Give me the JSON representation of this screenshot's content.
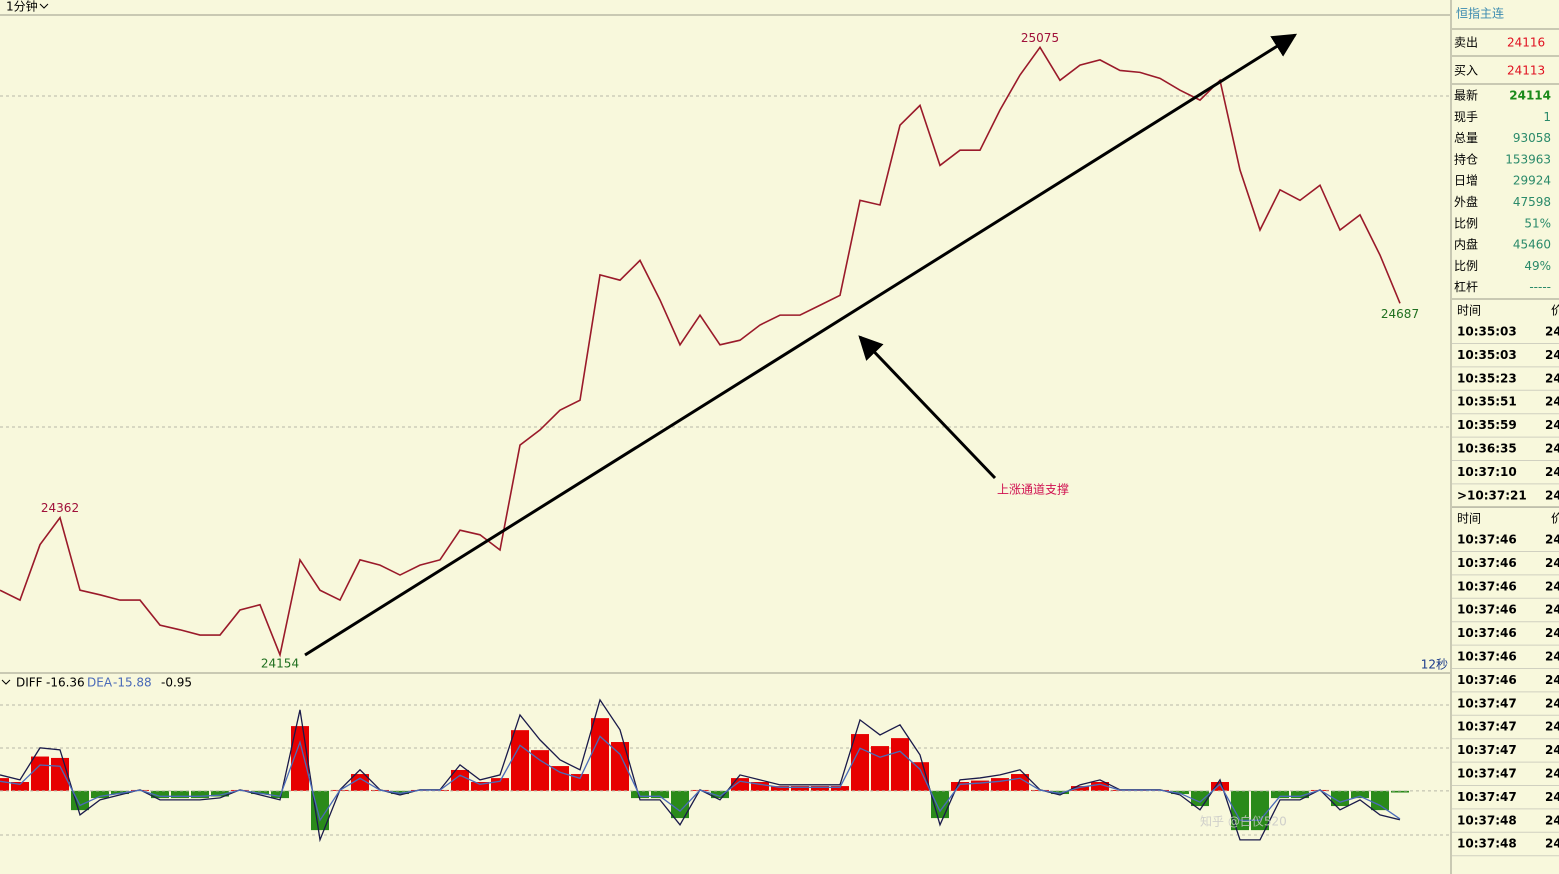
{
  "toolbar": {
    "period": "1分钟"
  },
  "chart": {
    "price": {
      "ylim": [
        24128,
        25124
      ],
      "color": "#9a1a2a",
      "values": [
        24252,
        24237,
        24321,
        24362,
        24252,
        24245,
        24237,
        24237,
        24199,
        24192,
        24184,
        24184,
        24222,
        24230,
        24154,
        24298,
        24252,
        24237,
        24298,
        24290,
        24275,
        24290,
        24298,
        24343,
        24336,
        24313,
        24472,
        24495,
        24525,
        24540,
        24730,
        24722,
        24752,
        24692,
        24624,
        24669,
        24624,
        24631,
        24654,
        24669,
        24669,
        24684,
        24699,
        24843,
        24836,
        24957,
        24987,
        24896,
        24919,
        24919,
        24980,
        25033,
        25075,
        25025,
        25048,
        25056,
        25040,
        25037,
        25028,
        25010,
        24995,
        25025,
        24889,
        24798,
        24859,
        24843,
        24866,
        24798,
        24821,
        24760,
        24687
      ]
    },
    "annotation": "上涨通道支撑",
    "timer": "12秒",
    "macd": {
      "ylim": [
        -47,
        57
      ],
      "diff": {
        "name": "DIFF",
        "color": "#1a1a4a",
        "values": [
          9.0,
          6.2,
          24.3,
          23.2,
          -13.6,
          -5.1,
          -2.3,
          0.6,
          -5.1,
          -5.1,
          -5.1,
          -4.0,
          0.6,
          -2.3,
          -5.1,
          45.8,
          -27.7,
          0.6,
          11.9,
          0.6,
          -2.3,
          0.6,
          0.6,
          14.7,
          6.2,
          9.0,
          42.9,
          28.8,
          17.5,
          11.9,
          51.4,
          34.5,
          -5.1,
          -5.1,
          -19.2,
          0.6,
          -5.1,
          9.0,
          6.2,
          3.4,
          3.4,
          3.4,
          3.4,
          40.1,
          31.6,
          37.3,
          20.3,
          -19.2,
          6.2,
          7.3,
          9.0,
          11.9,
          0.6,
          -2.3,
          3.4,
          6.2,
          0.6,
          0.6,
          0.6,
          -2.3,
          -10.7,
          6.2,
          -27.7,
          -27.7,
          -5.1,
          -5.1,
          0.6,
          -10.7,
          -5.1,
          -13.6,
          -16.36
        ]
      },
      "dea": {
        "name": "DEA",
        "color": "#4a6ab8",
        "values": [
          5.4,
          3.7,
          14.6,
          13.9,
          -8.2,
          -3.1,
          -1.4,
          0.4,
          -3.1,
          -3.1,
          -3.1,
          -2.4,
          0.4,
          -1.4,
          -3.1,
          27.5,
          -16.6,
          0.4,
          7.1,
          0.4,
          -1.4,
          0.4,
          0.4,
          8.8,
          3.7,
          5.4,
          25.7,
          17.3,
          10.5,
          7.1,
          30.8,
          20.7,
          -3.1,
          -3.1,
          -11.5,
          0.4,
          -3.1,
          5.4,
          3.7,
          2.0,
          2.0,
          2.0,
          2.0,
          24.1,
          19.0,
          22.4,
          12.2,
          -11.5,
          3.7,
          4.4,
          5.4,
          7.1,
          0.4,
          -1.4,
          2.0,
          3.7,
          0.4,
          0.4,
          0.4,
          -1.4,
          -6.4,
          3.7,
          -16.6,
          -16.6,
          -3.1,
          -3.1,
          0.4,
          -6.4,
          -3.1,
          -8.2,
          -15.88
        ]
      },
      "hist": {
        "up_color": "#e60000",
        "down_color": "#2a8a1a",
        "values": [
          7.2,
          5.0,
          19.4,
          18.6,
          -10.9,
          -4.1,
          -1.8,
          0.5,
          -4.1,
          -4.1,
          -4.1,
          -3.2,
          0.5,
          -1.8,
          -4.1,
          36.6,
          -22.2,
          0.5,
          9.5,
          0.5,
          -1.8,
          0.5,
          0.5,
          11.8,
          5.0,
          7.2,
          34.3,
          23.0,
          14.0,
          9.5,
          41.1,
          27.6,
          -4.1,
          -4.1,
          -15.4,
          0.5,
          -4.1,
          7.2,
          5.0,
          2.7,
          2.7,
          2.7,
          2.7,
          32.1,
          25.3,
          29.8,
          16.2,
          -15.4,
          5.0,
          5.8,
          7.2,
          9.5,
          0.5,
          -1.8,
          2.7,
          5.0,
          0.5,
          0.5,
          0.5,
          -1.8,
          -8.6,
          5.0,
          -22.2,
          -22.2,
          -4.1,
          -4.1,
          0.5,
          -8.6,
          -4.1,
          -10.9,
          -0.95
        ]
      }
    }
  },
  "quote": {
    "title": "恒指主连",
    "top": [
      {
        "label": "卖出",
        "value": "24116"
      },
      {
        "label": "买入",
        "value": "24113"
      }
    ],
    "rows": [
      {
        "label": "最新",
        "value": "24114"
      },
      {
        "label": "现手",
        "value": "1"
      },
      {
        "label": "总量",
        "value": "93058"
      },
      {
        "label": "持仓",
        "value": "153963"
      },
      {
        "label": "日增",
        "value": "29924"
      },
      {
        "label": "外盘",
        "value": "47598"
      },
      {
        "label": "比例",
        "value": "51%"
      },
      {
        "label": "内盘",
        "value": "45460"
      },
      {
        "label": "比例",
        "value": "49%"
      },
      {
        "label": "杠杆",
        "value": "-----"
      }
    ]
  },
  "ticks1": {
    "header": [
      "时间",
      "价"
    ],
    "rows": [
      [
        "10:35:03",
        "24"
      ],
      [
        "10:35:03",
        "24"
      ],
      [
        "10:35:23",
        "24"
      ],
      [
        "10:35:51",
        "24"
      ],
      [
        "10:35:59",
        "24"
      ],
      [
        "10:36:35",
        "24"
      ],
      [
        "10:37:10",
        "24"
      ],
      [
        ">10:37:21",
        "24"
      ]
    ]
  },
  "ticks2": {
    "header": [
      "时间",
      "价"
    ],
    "rows": [
      [
        "10:37:46",
        "24"
      ],
      [
        "10:37:46",
        "24"
      ],
      [
        "10:37:46",
        "24"
      ],
      [
        "10:37:46",
        "24"
      ],
      [
        "10:37:46",
        "24"
      ],
      [
        "10:37:46",
        "24"
      ],
      [
        "10:37:46",
        "24"
      ],
      [
        "10:37:47",
        "24"
      ],
      [
        "10:37:47",
        "24"
      ],
      [
        "10:37:47",
        "24"
      ],
      [
        "10:37:47",
        "24"
      ],
      [
        "10:37:47",
        "24"
      ],
      [
        "10:37:48",
        "24"
      ],
      [
        "10:37:48",
        "24"
      ]
    ]
  },
  "watermark": "知乎 @白仪520"
}
